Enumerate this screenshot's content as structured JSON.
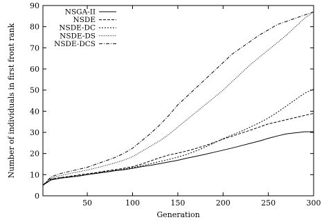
{
  "chart_data": {
    "type": "line",
    "title": "",
    "xlabel": "Generation",
    "ylabel": "Number of individuals in first front rank",
    "xlim": [
      1,
      300
    ],
    "ylim": [
      0,
      90
    ],
    "xticks": [
      50,
      100,
      150,
      200,
      250,
      300
    ],
    "yticks": [
      0,
      10,
      20,
      30,
      40,
      50,
      60,
      70,
      80,
      90
    ],
    "grid": false,
    "legend_position": "top-left",
    "series": [
      {
        "name": "NSGA-II",
        "style": "solid",
        "x": [
          1,
          10,
          20,
          30,
          40,
          50,
          60,
          70,
          80,
          90,
          100,
          110,
          120,
          130,
          140,
          150,
          160,
          170,
          180,
          190,
          200,
          210,
          220,
          230,
          240,
          250,
          260,
          270,
          280,
          290,
          300
        ],
        "values": [
          5,
          7.5,
          8.3,
          8.8,
          9.3,
          10,
          10.6,
          11.2,
          11.8,
          12.3,
          13,
          13.8,
          14.4,
          15.2,
          16,
          16.8,
          17.8,
          18.7,
          19.6,
          20.6,
          21.6,
          22.6,
          23.7,
          24.8,
          25.9,
          27.2,
          28.3,
          29.3,
          29.8,
          30.3,
          30.3
        ]
      },
      {
        "name": "NSDE",
        "style": "dashed",
        "x": [
          1,
          10,
          20,
          30,
          40,
          50,
          60,
          70,
          80,
          90,
          100,
          110,
          120,
          130,
          140,
          150,
          160,
          170,
          180,
          190,
          200,
          210,
          220,
          230,
          240,
          250,
          260,
          270,
          280,
          290,
          300
        ],
        "values": [
          5,
          8,
          8.6,
          9.2,
          9.8,
          10.4,
          11,
          11.7,
          12.3,
          13,
          13.8,
          15,
          16.5,
          18,
          19.3,
          20.2,
          21.2,
          22.4,
          23.7,
          25.2,
          26.8,
          28.2,
          29.6,
          31,
          32.5,
          34,
          35,
          36,
          37,
          38,
          39
        ]
      },
      {
        "name": "NSDE-DC",
        "style": "short-dashed",
        "x": [
          1,
          10,
          20,
          30,
          40,
          50,
          60,
          70,
          80,
          90,
          100,
          110,
          120,
          130,
          140,
          150,
          160,
          170,
          180,
          190,
          200,
          210,
          220,
          230,
          240,
          250,
          260,
          270,
          280,
          290,
          300
        ],
        "values": [
          5,
          7.8,
          8.5,
          9,
          9.5,
          10.1,
          10.8,
          11.4,
          12,
          12.6,
          13.4,
          14.2,
          15.2,
          16.2,
          17.2,
          18.3,
          19.6,
          21.2,
          23,
          25,
          27,
          28.8,
          30.5,
          32.5,
          34.5,
          36.8,
          39.5,
          42.5,
          45.5,
          48.5,
          50.5
        ]
      },
      {
        "name": "NSDE-DS",
        "style": "dotted",
        "x": [
          1,
          10,
          20,
          30,
          40,
          50,
          60,
          70,
          80,
          90,
          100,
          110,
          120,
          130,
          140,
          150,
          160,
          170,
          180,
          190,
          200,
          210,
          220,
          230,
          240,
          250,
          260,
          270,
          280,
          290,
          300
        ],
        "values": [
          5,
          8.5,
          9.5,
          10.5,
          11.3,
          12.2,
          13.2,
          14.3,
          15.5,
          16.8,
          18.5,
          21,
          23.5,
          26,
          29,
          32.5,
          36,
          39.5,
          43,
          46.5,
          50,
          54,
          58,
          62,
          65.5,
          69,
          72.5,
          76,
          80,
          84,
          87
        ]
      },
      {
        "name": "NSDE-DCS",
        "style": "dash-dot",
        "x": [
          1,
          10,
          20,
          30,
          40,
          50,
          60,
          70,
          80,
          90,
          100,
          110,
          120,
          130,
          140,
          150,
          160,
          170,
          180,
          190,
          200,
          210,
          220,
          230,
          240,
          250,
          260,
          270,
          280,
          290,
          300
        ],
        "values": [
          5,
          9,
          10.5,
          11.5,
          12.5,
          13.5,
          15,
          16.5,
          18,
          20,
          22.5,
          26,
          29.5,
          33.5,
          38,
          43,
          47,
          51,
          55,
          59,
          63,
          67,
          70,
          73,
          76,
          78.5,
          81,
          82.5,
          84,
          85.5,
          87
        ]
      }
    ]
  }
}
